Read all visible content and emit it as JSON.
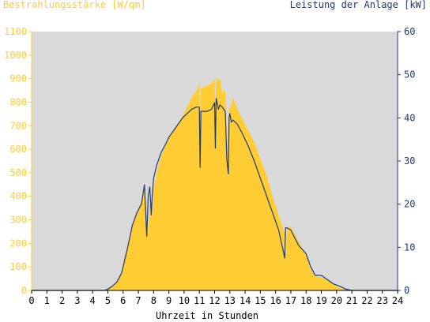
{
  "chart_data": {
    "type": "area",
    "left_axis_title": "Bestrahlungsstärke [W/qm]",
    "right_axis_title": "Leistung der Anlage [kW]",
    "xlabel": "Uhrzeit in Stunden",
    "x_ticks": [
      "0",
      "1",
      "2",
      "3",
      "4",
      "5",
      "6",
      "7",
      "8",
      "9",
      "10",
      "11",
      "12",
      "13",
      "14",
      "15",
      "16",
      "17",
      "18",
      "19",
      "20",
      "21",
      "22",
      "23",
      "24"
    ],
    "y_left_ticks": [
      "0",
      "100",
      "200",
      "300",
      "400",
      "500",
      "600",
      "700",
      "800",
      "900",
      "1000",
      "1100"
    ],
    "y_right_ticks": [
      "0",
      "10",
      "20",
      "30",
      "40",
      "50",
      "60"
    ],
    "xlim": [
      0,
      24
    ],
    "ylim_left": [
      0,
      1100
    ],
    "ylim_right": [
      0,
      60
    ],
    "grid": false,
    "colors": {
      "plot_background": "#d9d9d9",
      "irradiance_fill": "#ffcc33",
      "power_line": "#1f3a73",
      "left_axis_text": "#ffcc33",
      "right_axis_text": "#1f3a73"
    },
    "series": [
      {
        "name": "Bestrahlungsstärke [W/qm]",
        "axis": "left",
        "type": "area",
        "x": [
          0,
          4.8,
          5.0,
          5.3,
          5.6,
          5.9,
          6.1,
          6.3,
          6.6,
          6.9,
          7.2,
          7.4,
          7.55,
          7.65,
          7.75,
          7.85,
          7.9,
          8.0,
          8.2,
          8.5,
          8.8,
          9.0,
          9.3,
          9.6,
          9.9,
          10.2,
          10.5,
          10.8,
          11.0,
          11.05,
          11.1,
          11.2,
          11.5,
          11.8,
          12.0,
          12.05,
          12.1,
          12.25,
          12.35,
          12.5,
          12.7,
          12.8,
          12.9,
          12.95,
          13.0,
          13.1,
          13.2,
          13.5,
          13.8,
          14.2,
          14.6,
          15.0,
          15.4,
          15.8,
          16.2,
          16.6,
          16.65,
          16.75,
          17.0,
          17.5,
          18.0,
          18.3,
          18.6,
          19.0,
          19.4,
          19.8,
          20.2,
          20.6,
          21.0,
          24
        ],
        "y": [
          0,
          0,
          5,
          15,
          40,
          80,
          140,
          200,
          270,
          330,
          380,
          450,
          330,
          250,
          370,
          390,
          300,
          430,
          500,
          570,
          620,
          650,
          680,
          710,
          740,
          780,
          820,
          850,
          880,
          660,
          860,
          860,
          870,
          880,
          900,
          720,
          910,
          890,
          900,
          840,
          850,
          650,
          560,
          760,
          790,
          780,
          820,
          770,
          730,
          680,
          630,
          560,
          490,
          400,
          320,
          240,
          140,
          270,
          270,
          210,
          150,
          90,
          60,
          55,
          45,
          25,
          10,
          3,
          0,
          0
        ]
      },
      {
        "name": "Leistung der Anlage [kW]",
        "axis": "right",
        "type": "line",
        "x": [
          0,
          4.8,
          5.0,
          5.3,
          5.6,
          5.9,
          6.1,
          6.3,
          6.6,
          6.9,
          7.2,
          7.4,
          7.55,
          7.65,
          7.75,
          7.85,
          7.9,
          8.0,
          8.2,
          8.5,
          8.8,
          9.0,
          9.3,
          9.6,
          9.9,
          10.2,
          10.5,
          10.8,
          11.0,
          11.05,
          11.1,
          11.2,
          11.5,
          11.8,
          12.0,
          12.05,
          12.1,
          12.25,
          12.35,
          12.5,
          12.7,
          12.8,
          12.9,
          12.95,
          13.0,
          13.1,
          13.2,
          13.5,
          13.8,
          14.2,
          14.6,
          15.0,
          15.4,
          15.8,
          16.2,
          16.6,
          16.65,
          16.75,
          17.0,
          17.5,
          18.0,
          18.3,
          18.6,
          19.0,
          19.4,
          19.8,
          20.2,
          20.6,
          21.0,
          24
        ],
        "y": [
          0,
          0,
          0.3,
          1.0,
          2.0,
          4.0,
          7.0,
          10.0,
          15.0,
          18.0,
          20.0,
          24.5,
          12.5,
          22.0,
          24.0,
          17.5,
          21.5,
          26.0,
          29.0,
          32.0,
          34.0,
          35.5,
          37.0,
          38.5,
          40.0,
          41.0,
          42.0,
          42.5,
          42.5,
          28.5,
          41.5,
          41.5,
          41.5,
          42.0,
          43.5,
          33.0,
          44.5,
          42.0,
          43.0,
          42.5,
          41.5,
          30.5,
          27.0,
          40.0,
          41.0,
          39.0,
          39.5,
          38.5,
          36.5,
          33.5,
          30.0,
          26.0,
          22.0,
          18.0,
          14.0,
          7.5,
          14.5,
          14.5,
          14.0,
          10.5,
          8.5,
          5.5,
          3.5,
          3.5,
          2.5,
          1.5,
          1.0,
          0.3,
          0,
          0
        ]
      }
    ]
  }
}
